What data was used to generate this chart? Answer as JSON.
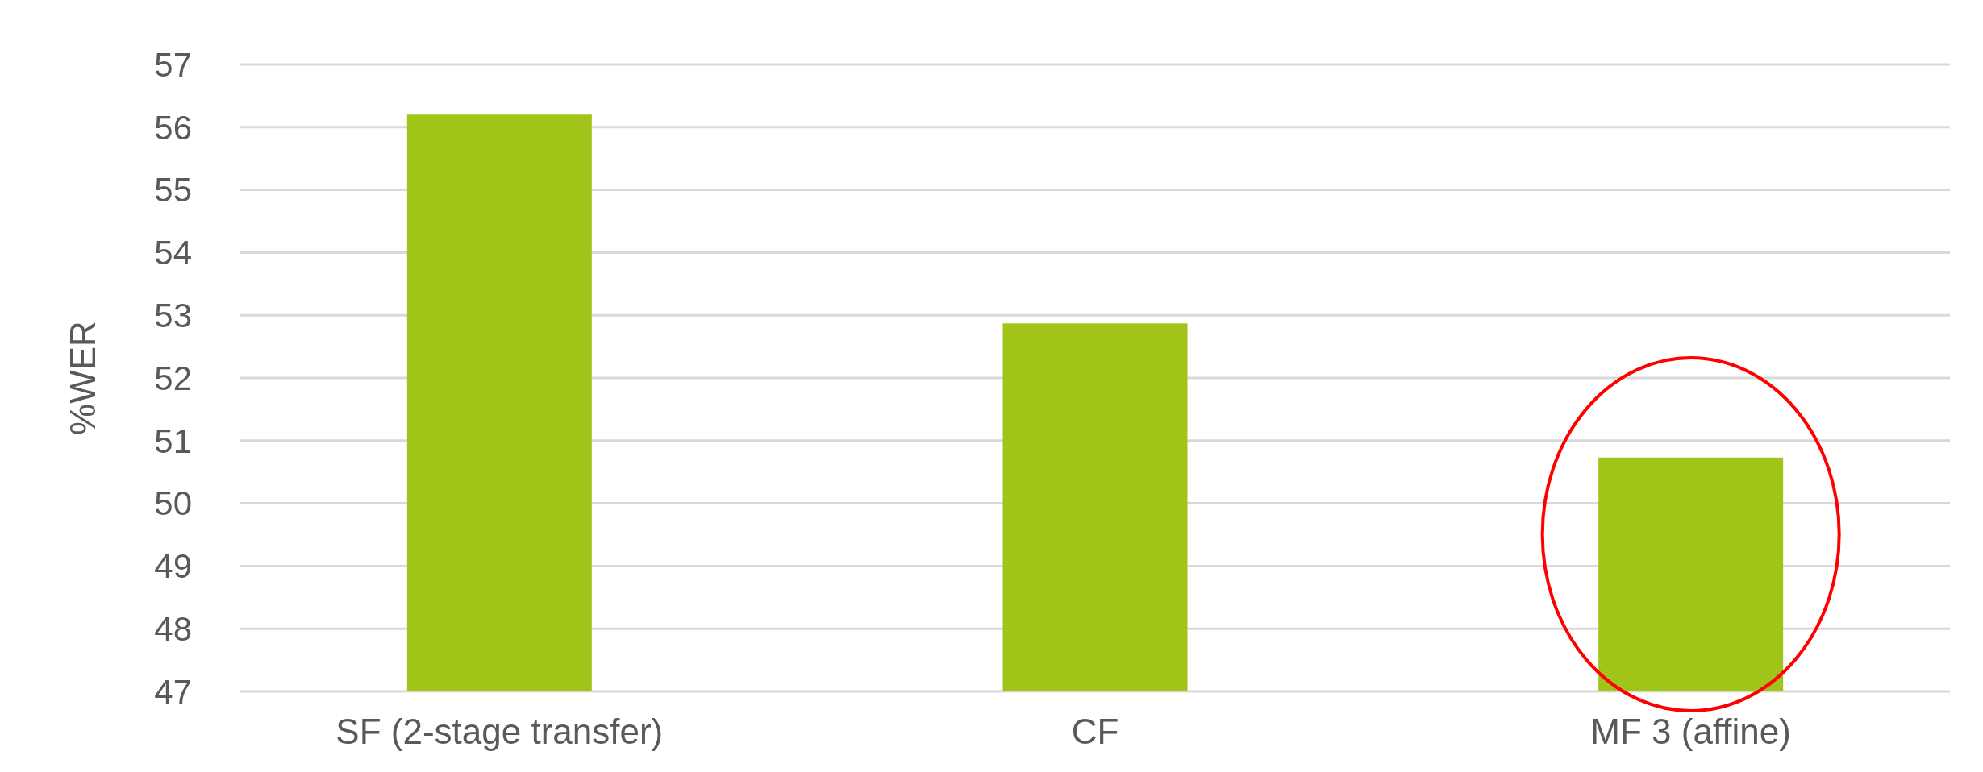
{
  "chart_data": {
    "type": "bar",
    "ylabel": "%WER",
    "categories": [
      "SF (2-stage transfer)",
      "CF",
      "MF 3 (affine)"
    ],
    "values": [
      56.2,
      52.87,
      50.73
    ],
    "color": "#a0c417",
    "ylim": [
      47,
      57
    ],
    "yticks": [
      47,
      48,
      49,
      50,
      51,
      52,
      53,
      54,
      55,
      56,
      57
    ],
    "grid": "y"
  }
}
